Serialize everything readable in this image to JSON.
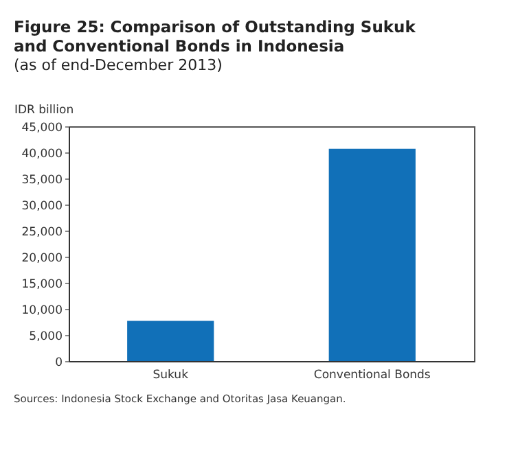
{
  "chart_data": {
    "type": "bar",
    "title": "Figure 25: Comparison of Outstanding Sukuk and Conventional Bonds in Indonesia",
    "subtitle": "(as of end-December 2013)",
    "ylabel": "IDR billion",
    "categories": [
      "Sukuk",
      "Conventional Bonds"
    ],
    "values": [
      7700,
      40700
    ],
    "color": "#1170b8",
    "ylim": [
      0,
      45000
    ],
    "yticks": [
      0,
      {
        "value": 5000,
        "label": "5,000"
      },
      {
        "value": 10000,
        "label": "10,000"
      },
      {
        "value": 15000,
        "label": "15,000"
      },
      {
        "value": 20000,
        "label": "20,000"
      },
      {
        "value": 25000,
        "label": "25,000"
      },
      {
        "value": 30000,
        "label": "30,000"
      },
      {
        "value": 35000,
        "label": "35,000"
      },
      {
        "value": 40000,
        "label": "40,000"
      },
      {
        "value": 45000,
        "label": "45,000"
      }
    ],
    "grid": false,
    "annotations": [
      "Sources: Indonesia Stock Exchange and Otoritas Jasa Keuangan."
    ]
  }
}
